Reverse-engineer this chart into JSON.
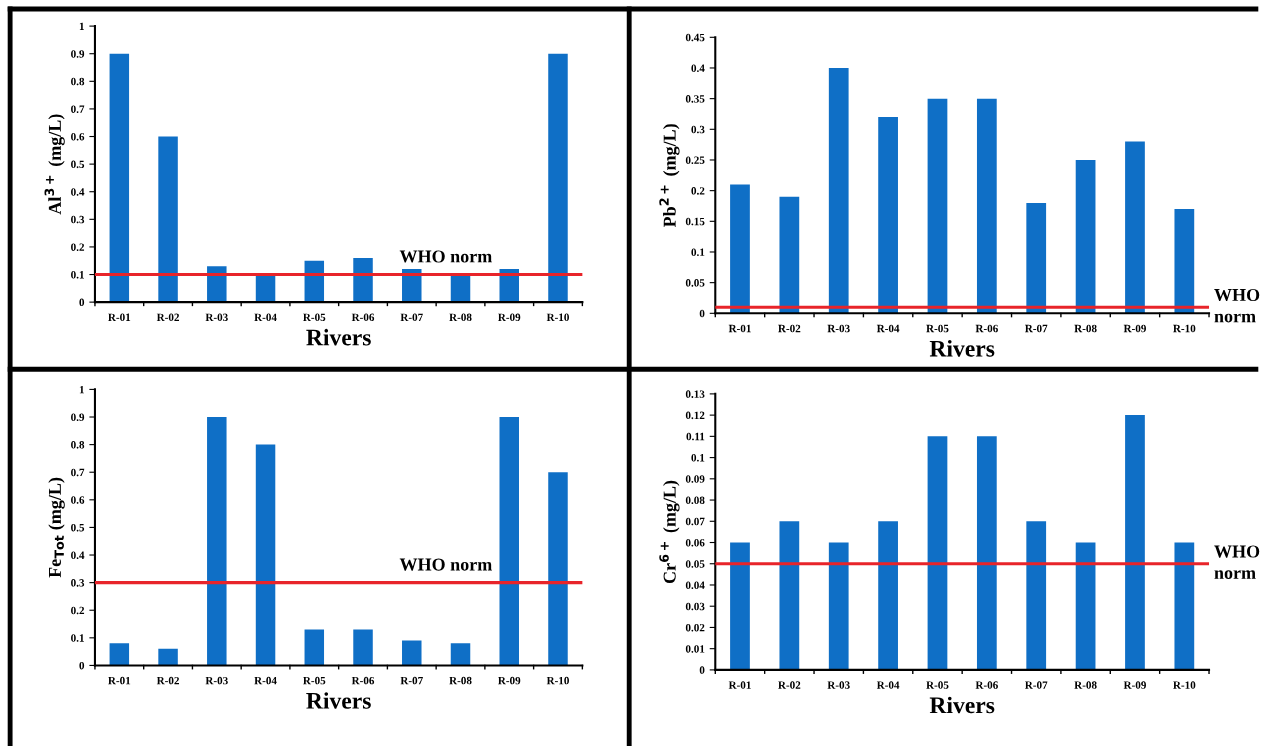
{
  "chart_data": [
    {
      "type": "bar",
      "xlabel": "Rivers",
      "ylabel": "Al$^{3+}$ (mg/L)",
      "categories": [
        "R-01",
        "R-02",
        "R-03",
        "R-04",
        "R-05",
        "R-06",
        "R-07",
        "R-08",
        "R-09",
        "R-10"
      ],
      "values": [
        0.9,
        0.6,
        0.13,
        0.1,
        0.15,
        0.16,
        0.12,
        0.1,
        0.12,
        0.9
      ],
      "color": "#0f6fc6",
      "ylim": [
        0,
        1
      ],
      "yticks": [
        0,
        0.1,
        0.2,
        0.3,
        0.4,
        0.5,
        0.6,
        0.7,
        0.8,
        0.9,
        1
      ],
      "grid": false,
      "ref_lines": [
        {
          "axis": "y",
          "value": 0.1,
          "label": "WHO norm",
          "color": "#e8242a"
        }
      ]
    },
    {
      "type": "bar",
      "xlabel": "Rivers",
      "ylabel": "Pb$^{2+}$ (mg/L)",
      "categories": [
        "R-01",
        "R-02",
        "R-03",
        "R-04",
        "R-05",
        "R-06",
        "R-07",
        "R-08",
        "R-09",
        "R-10"
      ],
      "values": [
        0.21,
        0.19,
        0.4,
        0.32,
        0.35,
        0.35,
        0.18,
        0.25,
        0.28,
        0.17
      ],
      "color": "#0f6fc6",
      "ylim": [
        0,
        0.45
      ],
      "yticks": [
        0,
        0.05,
        0.1,
        0.15,
        0.2,
        0.25,
        0.3,
        0.35,
        0.4,
        0.45
      ],
      "grid": false,
      "ref_lines": [
        {
          "axis": "y",
          "value": 0.01,
          "label": "WHO norm",
          "color": "#e8242a"
        }
      ]
    },
    {
      "type": "bar",
      "xlabel": "Rivers",
      "ylabel": "Fe$_{Tot}$ (mg/L)",
      "categories": [
        "R-01",
        "R-02",
        "R-03",
        "R-04",
        "R-05",
        "R-06",
        "R-07",
        "R-08",
        "R-09",
        "R-10"
      ],
      "values": [
        0.08,
        0.06,
        0.9,
        0.8,
        0.13,
        0.13,
        0.09,
        0.08,
        0.9,
        0.7
      ],
      "color": "#0f6fc6",
      "ylim": [
        0,
        1
      ],
      "yticks": [
        0,
        0.1,
        0.2,
        0.3,
        0.4,
        0.5,
        0.6,
        0.7,
        0.8,
        0.9,
        1
      ],
      "grid": false,
      "ref_lines": [
        {
          "axis": "y",
          "value": 0.3,
          "label": "WHO norm",
          "color": "#e8242a"
        }
      ]
    },
    {
      "type": "bar",
      "xlabel": "Rivers",
      "ylabel": "Cr$^{6+}$ (mg/L)",
      "categories": [
        "R-01",
        "R-02",
        "R-03",
        "R-04",
        "R-05",
        "R-06",
        "R-07",
        "R-08",
        "R-09",
        "R-10"
      ],
      "values": [
        0.06,
        0.07,
        0.06,
        0.07,
        0.11,
        0.11,
        0.07,
        0.06,
        0.12,
        0.06
      ],
      "color": "#0f6fc6",
      "ylim": [
        0,
        0.13
      ],
      "yticks": [
        0,
        0.01,
        0.02,
        0.03,
        0.04,
        0.05,
        0.06,
        0.07,
        0.08,
        0.09,
        0.1,
        0.11,
        0.12,
        0.13
      ],
      "grid": false,
      "ref_lines": [
        {
          "axis": "y",
          "value": 0.05,
          "label": "WHO norm",
          "color": "#e8242a"
        }
      ]
    }
  ]
}
